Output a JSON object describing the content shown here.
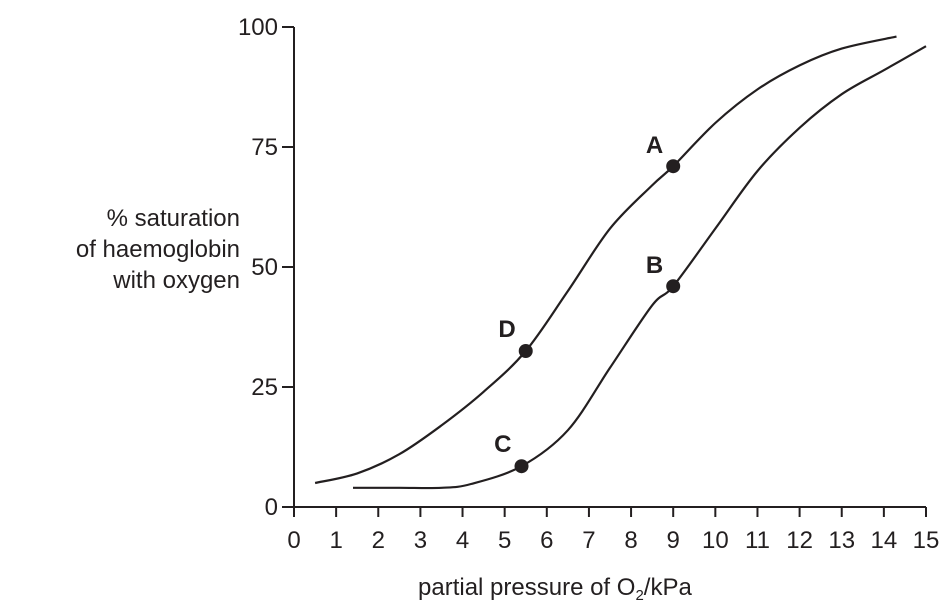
{
  "chart_data": {
    "type": "line",
    "ylabel_lines": [
      "% saturation",
      "of haemoglobin",
      "with oxygen"
    ],
    "xlabel": {
      "prefix": "partial pressure of O",
      "subscript": "2",
      "suffix": "/kPa"
    },
    "xlim": [
      0,
      15
    ],
    "ylim": [
      0,
      100
    ],
    "x_ticks": [
      0,
      1,
      2,
      3,
      4,
      5,
      6,
      7,
      8,
      9,
      10,
      11,
      12,
      13,
      14,
      15
    ],
    "y_ticks": [
      0,
      25,
      50,
      75,
      100
    ],
    "grid": false,
    "legend": "none",
    "series": [
      {
        "x": [
          0.5,
          1.5,
          2.5,
          3.5,
          4.5,
          5.5,
          6.5,
          7.5,
          8.5,
          9.0,
          10.0,
          11.0,
          12.0,
          13.0,
          14.3
        ],
        "y": [
          5,
          7,
          11,
          17,
          24,
          32.5,
          45,
          58,
          67,
          71,
          80,
          87,
          92,
          95.5,
          98
        ]
      },
      {
        "x": [
          1.4,
          2.5,
          3.5,
          4.2,
          5.4,
          6.5,
          7.5,
          8.5,
          9.0,
          10.0,
          11.0,
          12.0,
          13.0,
          14.0,
          15.0
        ],
        "y": [
          4,
          4,
          4,
          4.8,
          8.5,
          16,
          29,
          42,
          46,
          58,
          70,
          79,
          86,
          91,
          96
        ]
      }
    ],
    "points": [
      {
        "label": "A",
        "x": 9.0,
        "y": 71
      },
      {
        "label": "B",
        "x": 9.0,
        "y": 46
      },
      {
        "label": "C",
        "x": 5.4,
        "y": 8.5
      },
      {
        "label": "D",
        "x": 5.5,
        "y": 32.5
      }
    ]
  }
}
